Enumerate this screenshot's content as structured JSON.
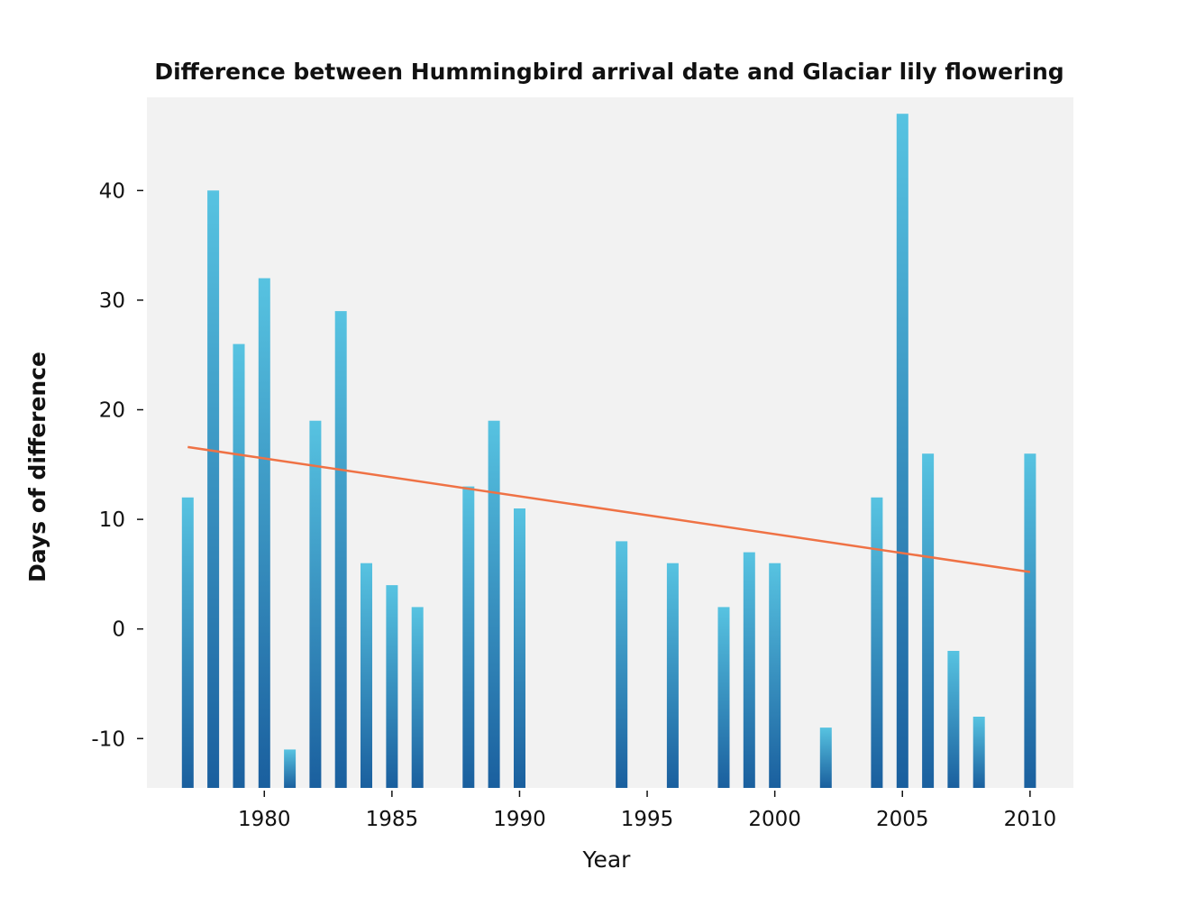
{
  "chart_data": {
    "type": "bar",
    "title": "Difference between Hummingbird arrival date and Glaciar lily flowering",
    "xlabel": "Year",
    "ylabel": "Days of difference",
    "xlim": [
      1975.4,
      2011.7
    ],
    "ylim": [
      -14.5,
      48.5
    ],
    "xticks": [
      1980,
      1985,
      1990,
      1995,
      2000,
      2005,
      2010
    ],
    "yticks": [
      -10,
      0,
      10,
      20,
      30,
      40
    ],
    "grid": false,
    "bar_gradient": [
      "#57c3e1",
      "#1a5f9e"
    ],
    "plot_background": "#f2f2f2",
    "trend_color": "#ef7245",
    "bars": [
      {
        "x": 1977,
        "y": 12
      },
      {
        "x": 1978,
        "y": 40
      },
      {
        "x": 1979,
        "y": 26
      },
      {
        "x": 1980,
        "y": 32
      },
      {
        "x": 1981,
        "y": -11
      },
      {
        "x": 1982,
        "y": 19
      },
      {
        "x": 1983,
        "y": 29
      },
      {
        "x": 1984,
        "y": 6
      },
      {
        "x": 1985,
        "y": 4
      },
      {
        "x": 1986,
        "y": 2
      },
      {
        "x": 1988,
        "y": 13
      },
      {
        "x": 1989,
        "y": 19
      },
      {
        "x": 1990,
        "y": 11
      },
      {
        "x": 1994,
        "y": 8
      },
      {
        "x": 1996,
        "y": 6
      },
      {
        "x": 1998,
        "y": 2
      },
      {
        "x": 1999,
        "y": 7
      },
      {
        "x": 2000,
        "y": 6
      },
      {
        "x": 2002,
        "y": -9
      },
      {
        "x": 2004,
        "y": 12
      },
      {
        "x": 2005,
        "y": 47
      },
      {
        "x": 2006,
        "y": 16
      },
      {
        "x": 2007,
        "y": -2
      },
      {
        "x": 2008,
        "y": -8
      },
      {
        "x": 2010,
        "y": 16
      }
    ],
    "trend_line": {
      "x": [
        1977,
        2010
      ],
      "y": [
        16.6,
        5.2
      ]
    }
  }
}
